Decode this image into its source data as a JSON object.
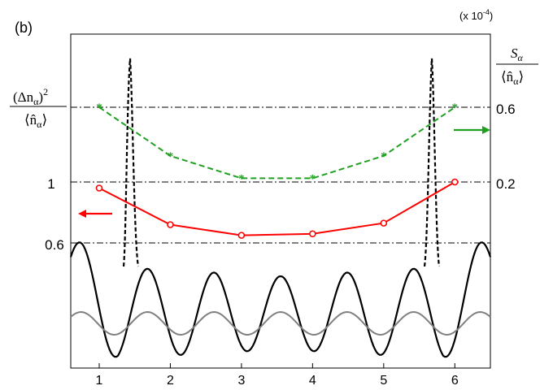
{
  "chart_data": {
    "type": "line",
    "panel_label": "(b)",
    "scale_note": "(x 10",
    "scale_note_exp": "-4",
    "scale_note_close": ")",
    "left_axis_label": {
      "num": "(Δn",
      "num_sub": "α",
      "num_tail": ")",
      "num_sup": "2",
      "den": "⟨n̂",
      "den_sub": "α",
      "den_tail": "⟩"
    },
    "right_axis_label": {
      "num": "S",
      "num_sub": "α",
      "den": "⟨n̂",
      "den_sub": "α",
      "den_tail": "⟩"
    },
    "x": [
      1,
      2,
      3,
      4,
      5,
      6
    ],
    "xlim": [
      0.6,
      6.5
    ],
    "x_ticks": [
      "1",
      "2",
      "3",
      "4",
      "5",
      "6"
    ],
    "left_ticks": [
      "1",
      "0.6"
    ],
    "right_ticks": [
      "0.6",
      "0.2"
    ],
    "colors": {
      "red": "#ff0000",
      "green": "#20a020",
      "black": "#000000",
      "gray": "#808080"
    },
    "series": [
      {
        "axis": "left",
        "color": "red",
        "marker": "circle",
        "style": "solid",
        "values": [
          0.96,
          0.72,
          0.65,
          0.66,
          0.73,
          1.0
        ]
      },
      {
        "axis": "right",
        "color": "green",
        "marker": "star",
        "style": "dashed",
        "values": [
          0.6,
          0.34,
          0.22,
          0.22,
          0.34,
          0.6
        ]
      }
    ]
  }
}
